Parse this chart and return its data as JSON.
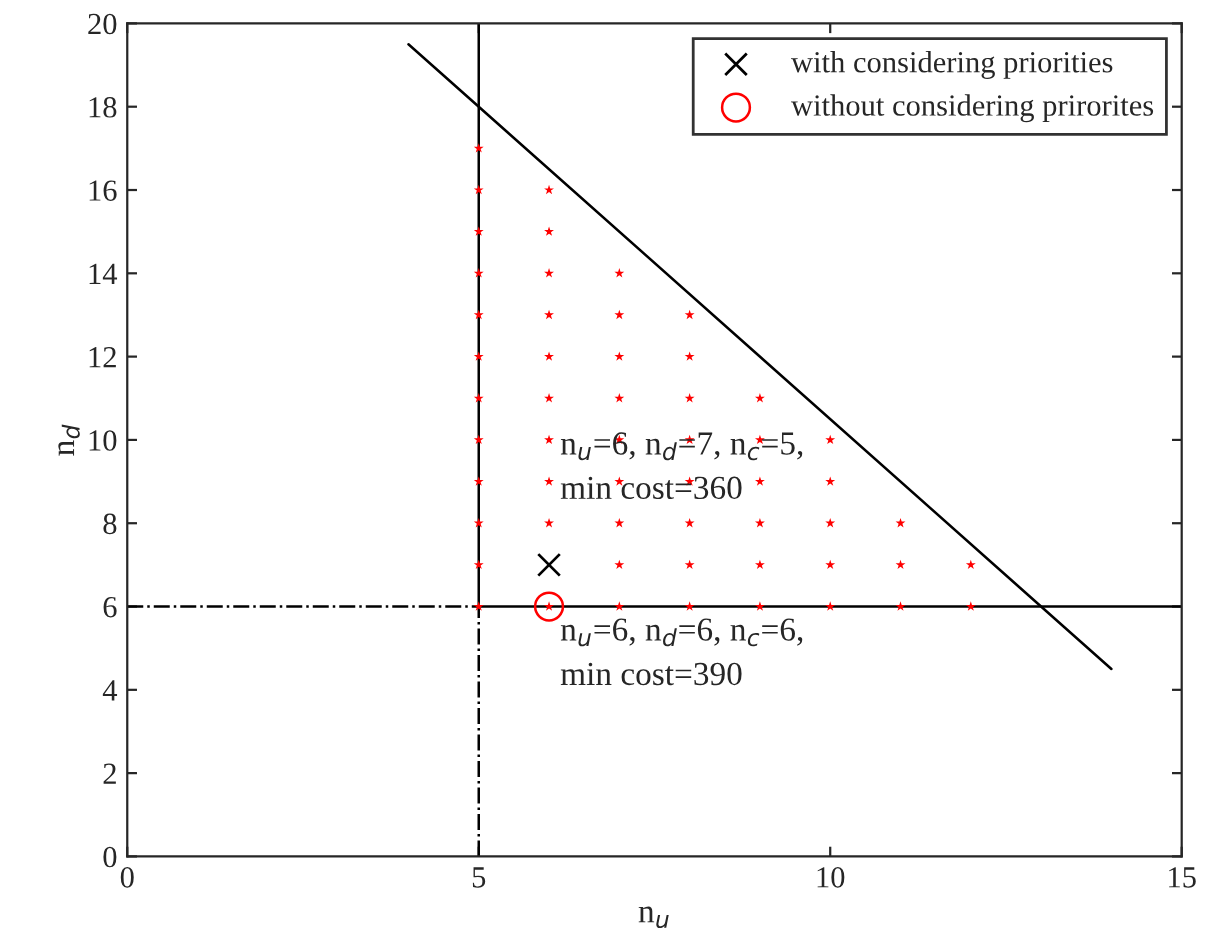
{
  "chart_data": {
    "type": "scatter",
    "xlabel": "n$_{u}$",
    "ylabel": "n$_{d}$",
    "xlim": [
      0,
      15
    ],
    "xticks": [
      0,
      5,
      10,
      15
    ],
    "ylim": [
      0,
      20
    ],
    "yticks": [
      0,
      2,
      4,
      6,
      8,
      10,
      12,
      14,
      16,
      18,
      20
    ],
    "grid": false,
    "legend": "top right",
    "series": [
      {
        "color": "#ff0000",
        "marker": "star",
        "x": [
          5,
          5,
          5,
          5,
          5,
          5,
          5,
          5,
          5,
          5,
          5,
          5,
          6,
          6,
          6,
          6,
          6,
          6,
          6,
          6,
          6,
          6,
          7,
          7,
          7,
          7,
          7,
          7,
          7,
          7,
          7,
          8,
          8,
          8,
          8,
          8,
          8,
          8,
          8,
          9,
          9,
          9,
          9,
          9,
          9,
          10,
          10,
          10,
          10,
          10,
          11,
          11,
          11,
          12,
          12
        ],
        "values": [
          6,
          7,
          8,
          9,
          10,
          11,
          12,
          13,
          14,
          15,
          16,
          17,
          6,
          8,
          9,
          10,
          11,
          12,
          13,
          14,
          15,
          16,
          6,
          7,
          8,
          9,
          10,
          11,
          12,
          13,
          14,
          6,
          7,
          8,
          9,
          10,
          11,
          12,
          13,
          6,
          7,
          8,
          9,
          10,
          11,
          6,
          7,
          8,
          9,
          10,
          6,
          7,
          8,
          6,
          7
        ]
      },
      {
        "type": "line",
        "color": "#000000",
        "line_style": "solid",
        "x": [
          5,
          5
        ],
        "values": [
          6,
          20
        ]
      },
      {
        "type": "line",
        "color": "#000000",
        "line_style": "dashdot",
        "x": [
          5,
          5
        ],
        "values": [
          0,
          6
        ]
      },
      {
        "type": "line",
        "color": "#000000",
        "line_style": "solid",
        "x": [
          5,
          15
        ],
        "values": [
          6,
          6
        ]
      },
      {
        "type": "line",
        "color": "#000000",
        "line_style": "dashdot",
        "x": [
          0,
          5
        ],
        "values": [
          6,
          6
        ]
      },
      {
        "type": "line",
        "color": "#000000",
        "line_style": "solid",
        "x": [
          4,
          14
        ],
        "values": [
          19.5,
          4.5
        ]
      },
      {
        "name": "with considering priorities",
        "color": "#000000",
        "marker": "cross",
        "x": [
          6
        ],
        "values": [
          7
        ]
      },
      {
        "name": "without considering prirorites",
        "color": "#ff0000",
        "x": [
          6
        ],
        "values": [
          6
        ]
      }
    ],
    "annotations": [
      {
        "text": "n$_{u}$=6, n$_{d}$=7, n$_{c}$=5,\nmin cost=360",
        "x": 6,
        "y": 7
      },
      {
        "text": "n$_{u}$=6, n$_{d}$=6, n$_{c}$=6,\nmin cost=390",
        "x": 6,
        "y": 6
      }
    ]
  }
}
